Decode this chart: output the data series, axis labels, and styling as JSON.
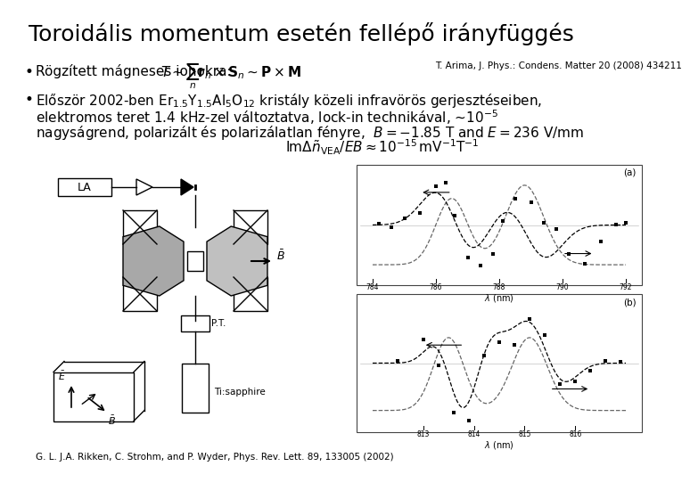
{
  "title": "Toroidális momentum esetén fellépő irányfüggés",
  "title_fontsize": 18,
  "bg_color": "#ffffff",
  "bullet1_text1": "Rögzített mágneses ionokra: ",
  "bullet1_formula": "$T \\sim \\sum_n \\mathbf{r}_n \\times \\mathbf{S}_n \\sim \\mathbf{P} \\times \\mathbf{M}$",
  "bullet1_ref": "T. Arima, J. Phys.: Condens. Matter 20 (2008) 434211",
  "bullet2_line1": "Először 2002-ben Er$_{1.5}$Y$_{1.5}$Al$_5$O$_{12}$ kristály közeli infravörös gerjesztéseiben,",
  "bullet2_line2": "elektromos teret 1.4 kHz-zel változtatva, lock-in technikával, ~10$^{-5}$",
  "bullet2_line3": "nagyságrend, polarizált és polarizálatlan fényre,",
  "bullet2_formula_inline": "$B = -1.85$ T and $E = 236$ V/mm",
  "bullet2_formula2": "$\\mathrm{Im}\\Delta\\tilde{n}_{\\mathrm{VEA}}/EB \\approx 10^{-15}\\,\\mathrm{mV}^{-1}\\mathrm{T}^{-1}$",
  "caption": "G. L. J.A. Rikken, C. Strohm, and P. Wyder, Phys. Rev. Lett. 89, 133005 (2002)",
  "text_color": "#000000",
  "font_size_body": 11,
  "font_size_small": 8,
  "font_size_ref": 7.5,
  "font_size_caption": 7.5
}
